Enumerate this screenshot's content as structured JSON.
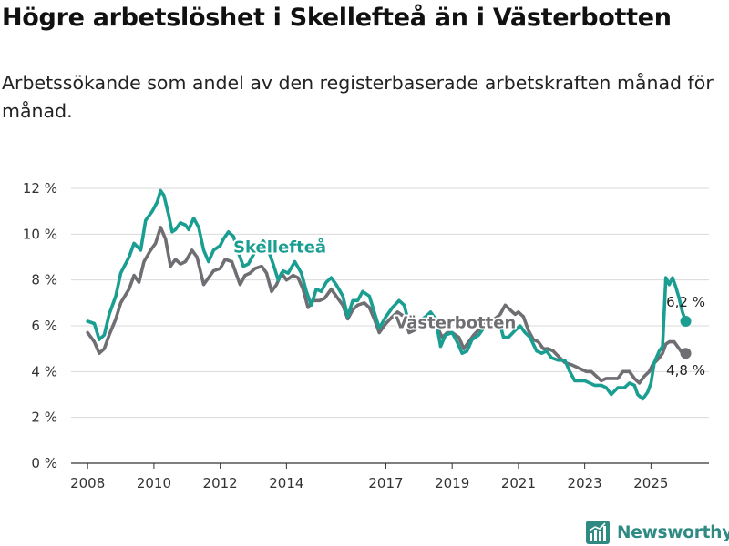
{
  "header": {
    "title": "Högre arbetslöshet i Skellefteå än i Västerbotten",
    "subtitle": "Arbetssökande som andel av den registerbaserade arbetskraften månad för månad."
  },
  "branding": {
    "name": "Newsworthy"
  },
  "chart_data": {
    "type": "line",
    "title": "Högre arbetslöshet i Skellefteå än i Västerbotten",
    "subtitle": "Arbetssökande som andel av den registerbaserade arbetskraften månad för månad.",
    "xlabel": "",
    "ylabel": "",
    "xlim": [
      2007.5,
      2026.75
    ],
    "ylim": [
      0,
      12
    ],
    "grid": true,
    "yticks": [
      {
        "value": 0,
        "label": "0 %"
      },
      {
        "value": 2,
        "label": "2 %"
      },
      {
        "value": 4,
        "label": "4 %"
      },
      {
        "value": 6,
        "label": "6 %"
      },
      {
        "value": 8,
        "label": "8 %"
      },
      {
        "value": 10,
        "label": "10 %"
      },
      {
        "value": 12,
        "label": "12 %"
      }
    ],
    "xticks": [
      {
        "value": 2008,
        "label": "2008"
      },
      {
        "value": 2010,
        "label": "2010"
      },
      {
        "value": 2012,
        "label": "2012"
      },
      {
        "value": 2014,
        "label": "2014"
      },
      {
        "value": 2017,
        "label": "2017"
      },
      {
        "value": 2019,
        "label": "2019"
      },
      {
        "value": 2021,
        "label": "2021"
      },
      {
        "value": 2023,
        "label": "2023"
      },
      {
        "value": 2025,
        "label": "2025"
      }
    ],
    "series": [
      {
        "name": "Skellefteå",
        "color": "#1a9e91",
        "end_label": "6,2 %",
        "end_value": 6.2,
        "points": [
          [
            2008.0,
            6.2
          ],
          [
            2008.2,
            6.1
          ],
          [
            2008.35,
            5.4
          ],
          [
            2008.5,
            5.6
          ],
          [
            2008.65,
            6.5
          ],
          [
            2008.85,
            7.3
          ],
          [
            2009.0,
            8.3
          ],
          [
            2009.25,
            9.0
          ],
          [
            2009.4,
            9.6
          ],
          [
            2009.6,
            9.3
          ],
          [
            2009.75,
            10.6
          ],
          [
            2009.95,
            11.0
          ],
          [
            2010.1,
            11.4
          ],
          [
            2010.2,
            11.9
          ],
          [
            2010.3,
            11.7
          ],
          [
            2010.45,
            10.8
          ],
          [
            2010.55,
            10.1
          ],
          [
            2010.65,
            10.2
          ],
          [
            2010.8,
            10.5
          ],
          [
            2010.95,
            10.4
          ],
          [
            2011.05,
            10.2
          ],
          [
            2011.2,
            10.7
          ],
          [
            2011.35,
            10.3
          ],
          [
            2011.5,
            9.3
          ],
          [
            2011.65,
            8.8
          ],
          [
            2011.8,
            9.3
          ],
          [
            2012.0,
            9.5
          ],
          [
            2012.1,
            9.8
          ],
          [
            2012.25,
            10.1
          ],
          [
            2012.4,
            9.9
          ],
          [
            2012.55,
            9.2
          ],
          [
            2012.7,
            8.6
          ],
          [
            2012.85,
            8.7
          ],
          [
            2013.0,
            9.1
          ],
          [
            2013.15,
            9.5
          ],
          [
            2013.3,
            9.7
          ],
          [
            2013.45,
            9.3
          ],
          [
            2013.6,
            8.7
          ],
          [
            2013.75,
            8.0
          ],
          [
            2013.9,
            8.4
          ],
          [
            2014.05,
            8.3
          ],
          [
            2014.25,
            8.8
          ],
          [
            2014.45,
            8.3
          ],
          [
            2014.6,
            7.5
          ],
          [
            2014.75,
            6.9
          ],
          [
            2014.9,
            7.6
          ],
          [
            2015.05,
            7.5
          ],
          [
            2015.2,
            7.9
          ],
          [
            2015.35,
            8.1
          ],
          [
            2015.5,
            7.8
          ],
          [
            2015.7,
            7.3
          ],
          [
            2015.85,
            6.4
          ],
          [
            2016.0,
            7.1
          ],
          [
            2016.15,
            7.1
          ],
          [
            2016.3,
            7.5
          ],
          [
            2016.5,
            7.3
          ],
          [
            2016.65,
            6.6
          ],
          [
            2016.8,
            5.9
          ],
          [
            2017.0,
            6.4
          ],
          [
            2017.2,
            6.8
          ],
          [
            2017.4,
            7.1
          ],
          [
            2017.55,
            6.9
          ],
          [
            2017.7,
            6.1
          ],
          [
            2017.85,
            5.9
          ],
          [
            2018.0,
            6.2
          ],
          [
            2018.2,
            6.4
          ],
          [
            2018.35,
            6.6
          ],
          [
            2018.5,
            6.3
          ],
          [
            2018.65,
            5.1
          ],
          [
            2018.8,
            5.6
          ],
          [
            2019.0,
            5.7
          ],
          [
            2019.15,
            5.3
          ],
          [
            2019.3,
            4.8
          ],
          [
            2019.45,
            4.9
          ],
          [
            2019.6,
            5.4
          ],
          [
            2019.8,
            5.6
          ],
          [
            2020.0,
            6.0
          ],
          [
            2020.2,
            6.1
          ],
          [
            2020.4,
            6.3
          ],
          [
            2020.55,
            5.5
          ],
          [
            2020.7,
            5.5
          ],
          [
            2020.9,
            5.8
          ],
          [
            2021.05,
            6.0
          ],
          [
            2021.2,
            5.7
          ],
          [
            2021.35,
            5.5
          ],
          [
            2021.55,
            4.9
          ],
          [
            2021.7,
            4.8
          ],
          [
            2021.85,
            4.9
          ],
          [
            2022.0,
            4.6
          ],
          [
            2022.2,
            4.5
          ],
          [
            2022.4,
            4.5
          ],
          [
            2022.55,
            4.0
          ],
          [
            2022.7,
            3.6
          ],
          [
            2022.85,
            3.6
          ],
          [
            2023.0,
            3.6
          ],
          [
            2023.15,
            3.5
          ],
          [
            2023.3,
            3.4
          ],
          [
            2023.5,
            3.4
          ],
          [
            2023.65,
            3.3
          ],
          [
            2023.8,
            3.0
          ],
          [
            2024.0,
            3.3
          ],
          [
            2024.2,
            3.3
          ],
          [
            2024.35,
            3.5
          ],
          [
            2024.5,
            3.4
          ],
          [
            2024.6,
            3.0
          ],
          [
            2024.75,
            2.8
          ],
          [
            2024.9,
            3.1
          ],
          [
            2025.0,
            3.5
          ],
          [
            2025.1,
            4.4
          ],
          [
            2025.25,
            4.9
          ],
          [
            2025.35,
            5.1
          ],
          [
            2025.45,
            8.1
          ],
          [
            2025.55,
            7.8
          ],
          [
            2025.65,
            8.1
          ],
          [
            2025.75,
            7.7
          ],
          [
            2025.85,
            7.2
          ],
          [
            2025.95,
            6.6
          ],
          [
            2026.05,
            6.2
          ]
        ]
      },
      {
        "name": "Västerbotten",
        "color": "#6e6e73",
        "end_label": "4,8 %",
        "end_value": 4.8,
        "points": [
          [
            2008.0,
            5.7
          ],
          [
            2008.2,
            5.3
          ],
          [
            2008.35,
            4.8
          ],
          [
            2008.5,
            5.0
          ],
          [
            2008.65,
            5.6
          ],
          [
            2008.85,
            6.3
          ],
          [
            2009.0,
            7.0
          ],
          [
            2009.25,
            7.6
          ],
          [
            2009.4,
            8.2
          ],
          [
            2009.55,
            7.9
          ],
          [
            2009.7,
            8.8
          ],
          [
            2009.9,
            9.3
          ],
          [
            2010.05,
            9.6
          ],
          [
            2010.2,
            10.3
          ],
          [
            2010.35,
            9.8
          ],
          [
            2010.5,
            8.6
          ],
          [
            2010.65,
            8.9
          ],
          [
            2010.8,
            8.7
          ],
          [
            2010.95,
            8.8
          ],
          [
            2011.15,
            9.3
          ],
          [
            2011.3,
            9.0
          ],
          [
            2011.5,
            7.8
          ],
          [
            2011.65,
            8.1
          ],
          [
            2011.8,
            8.4
          ],
          [
            2012.0,
            8.5
          ],
          [
            2012.15,
            8.9
          ],
          [
            2012.35,
            8.8
          ],
          [
            2012.5,
            8.2
          ],
          [
            2012.6,
            7.8
          ],
          [
            2012.75,
            8.2
          ],
          [
            2012.9,
            8.3
          ],
          [
            2013.05,
            8.5
          ],
          [
            2013.25,
            8.6
          ],
          [
            2013.4,
            8.3
          ],
          [
            2013.55,
            7.5
          ],
          [
            2013.7,
            7.8
          ],
          [
            2013.85,
            8.3
          ],
          [
            2014.0,
            8.0
          ],
          [
            2014.2,
            8.2
          ],
          [
            2014.35,
            8.1
          ],
          [
            2014.5,
            7.6
          ],
          [
            2014.65,
            6.8
          ],
          [
            2014.8,
            7.1
          ],
          [
            2015.0,
            7.1
          ],
          [
            2015.15,
            7.2
          ],
          [
            2015.35,
            7.6
          ],
          [
            2015.5,
            7.3
          ],
          [
            2015.7,
            6.9
          ],
          [
            2015.85,
            6.3
          ],
          [
            2016.0,
            6.7
          ],
          [
            2016.15,
            6.9
          ],
          [
            2016.35,
            7.0
          ],
          [
            2016.5,
            6.8
          ],
          [
            2016.65,
            6.3
          ],
          [
            2016.8,
            5.7
          ],
          [
            2017.0,
            6.1
          ],
          [
            2017.2,
            6.4
          ],
          [
            2017.35,
            6.6
          ],
          [
            2017.55,
            6.4
          ],
          [
            2017.7,
            5.7
          ],
          [
            2017.85,
            5.8
          ],
          [
            2018.0,
            6.0
          ],
          [
            2018.15,
            6.3
          ],
          [
            2018.35,
            6.4
          ],
          [
            2018.5,
            6.1
          ],
          [
            2018.7,
            5.5
          ],
          [
            2018.85,
            5.7
          ],
          [
            2019.0,
            5.7
          ],
          [
            2019.2,
            5.5
          ],
          [
            2019.35,
            5.0
          ],
          [
            2019.5,
            5.3
          ],
          [
            2019.65,
            5.6
          ],
          [
            2019.85,
            5.9
          ],
          [
            2020.0,
            6.3
          ],
          [
            2020.2,
            6.2
          ],
          [
            2020.45,
            6.5
          ],
          [
            2020.6,
            6.9
          ],
          [
            2020.75,
            6.7
          ],
          [
            2020.9,
            6.5
          ],
          [
            2021.0,
            6.6
          ],
          [
            2021.15,
            6.4
          ],
          [
            2021.3,
            5.8
          ],
          [
            2021.45,
            5.4
          ],
          [
            2021.6,
            5.3
          ],
          [
            2021.75,
            5.0
          ],
          [
            2021.9,
            5.0
          ],
          [
            2022.05,
            4.9
          ],
          [
            2022.25,
            4.6
          ],
          [
            2022.4,
            4.4
          ],
          [
            2022.6,
            4.3
          ],
          [
            2022.75,
            4.2
          ],
          [
            2022.9,
            4.1
          ],
          [
            2023.05,
            4.0
          ],
          [
            2023.2,
            4.0
          ],
          [
            2023.35,
            3.8
          ],
          [
            2023.5,
            3.6
          ],
          [
            2023.65,
            3.7
          ],
          [
            2023.8,
            3.7
          ],
          [
            2024.0,
            3.7
          ],
          [
            2024.15,
            4.0
          ],
          [
            2024.35,
            4.0
          ],
          [
            2024.5,
            3.7
          ],
          [
            2024.65,
            3.5
          ],
          [
            2024.8,
            3.8
          ],
          [
            2024.95,
            4.0
          ],
          [
            2025.05,
            4.3
          ],
          [
            2025.25,
            4.6
          ],
          [
            2025.35,
            4.8
          ],
          [
            2025.45,
            5.2
          ],
          [
            2025.55,
            5.3
          ],
          [
            2025.7,
            5.3
          ],
          [
            2025.85,
            5.0
          ],
          [
            2025.95,
            4.8
          ],
          [
            2026.05,
            4.8
          ]
        ]
      }
    ],
    "annotations": [
      {
        "text": "Skellefteå",
        "series": "Skellefteå",
        "x": 2013.8,
        "y": 9.2
      },
      {
        "text": "Västerbotten",
        "series": "Västerbotten",
        "x": 2019.1,
        "y": 5.9
      }
    ]
  }
}
